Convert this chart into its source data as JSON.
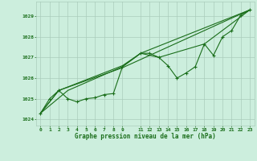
{
  "bg_color": "#cceedd",
  "grid_color": "#aaccbb",
  "line_color": "#1a6e1a",
  "marker_color": "#1a6e1a",
  "xlabel": "Graphe pression niveau de la mer (hPa)",
  "xlabel_color": "#1a6e1a",
  "tick_color": "#1a6e1a",
  "ylim": [
    1023.7,
    1029.7
  ],
  "xlim": [
    -0.5,
    23.5
  ],
  "yticks": [
    1024,
    1025,
    1026,
    1027,
    1028,
    1029
  ],
  "xtick_positions": [
    0,
    1,
    2,
    3,
    4,
    5,
    6,
    7,
    8,
    9,
    11,
    12,
    13,
    14,
    15,
    16,
    17,
    18,
    19,
    20,
    21,
    22,
    23
  ],
  "xtick_labels": [
    "0",
    "1",
    "2",
    "3",
    "4",
    "5",
    "6",
    "7",
    "8",
    "9",
    "11",
    "12",
    "13",
    "14",
    "15",
    "16",
    "17",
    "18",
    "19",
    "20",
    "21",
    "22",
    "23"
  ],
  "series_main": [
    [
      0,
      1024.3
    ],
    [
      1,
      1025.0
    ],
    [
      2,
      1025.4
    ],
    [
      3,
      1025.0
    ],
    [
      4,
      1024.85
    ],
    [
      5,
      1025.0
    ],
    [
      6,
      1025.05
    ],
    [
      7,
      1025.2
    ],
    [
      8,
      1025.25
    ],
    [
      9,
      1026.55
    ],
    [
      11,
      1027.2
    ],
    [
      12,
      1027.2
    ],
    [
      13,
      1027.0
    ],
    [
      14,
      1026.6
    ],
    [
      15,
      1026.0
    ],
    [
      16,
      1026.25
    ],
    [
      17,
      1026.55
    ],
    [
      18,
      1027.65
    ],
    [
      19,
      1027.1
    ],
    [
      20,
      1028.0
    ],
    [
      21,
      1028.3
    ],
    [
      22,
      1029.05
    ],
    [
      23,
      1029.3
    ]
  ],
  "series_extra": [
    [
      [
        0,
        1024.3
      ],
      [
        2,
        1025.4
      ],
      [
        9,
        1026.5
      ],
      [
        23,
        1029.3
      ]
    ],
    [
      [
        0,
        1024.3
      ],
      [
        3,
        1025.4
      ],
      [
        9,
        1026.55
      ],
      [
        11,
        1027.2
      ],
      [
        23,
        1029.3
      ]
    ],
    [
      [
        0,
        1024.3
      ],
      [
        2,
        1025.4
      ],
      [
        9,
        1026.6
      ],
      [
        11,
        1027.2
      ],
      [
        13,
        1027.0
      ],
      [
        18,
        1027.65
      ],
      [
        23,
        1029.3
      ]
    ]
  ]
}
